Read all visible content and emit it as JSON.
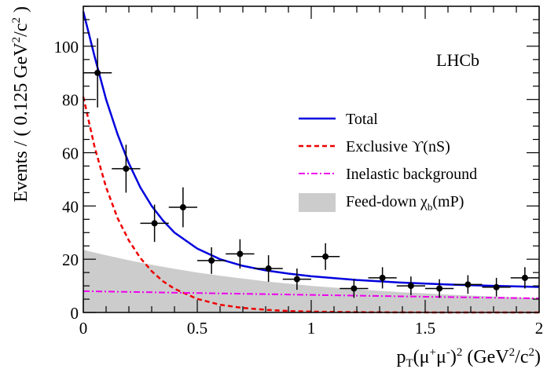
{
  "chart_data": {
    "type": "scatter",
    "experiment_label": "LHCb",
    "xlabel": {
      "base": "p",
      "sub": "T",
      "mid": "(μ",
      "sup1": "+",
      "mu2": "μ",
      "sup2": "-",
      "close": ")",
      "sq": "2",
      "unit": " (GeV",
      "unit_sup": "2",
      "unit_end": "/c",
      "unit_end_sup": "2",
      "unit_close": ")"
    },
    "ylabel": {
      "text": "Events / ( 0.125 GeV",
      "sup1": "2",
      "mid": "/c",
      "sup2": "2",
      "close": " )"
    },
    "xlim": [
      0,
      2
    ],
    "ylim": [
      0,
      115
    ],
    "x_ticks": [
      {
        "value": 0,
        "label": "0"
      },
      {
        "value": 0.5,
        "label": "0.5"
      },
      {
        "value": 1,
        "label": "1"
      },
      {
        "value": 1.5,
        "label": "1.5"
      },
      {
        "value": 2,
        "label": "2"
      }
    ],
    "y_ticks": [
      {
        "value": 0,
        "label": "0"
      },
      {
        "value": 20,
        "label": "20"
      },
      {
        "value": 40,
        "label": "40"
      },
      {
        "value": 60,
        "label": "60"
      },
      {
        "value": 80,
        "label": "80"
      },
      {
        "value": 100,
        "label": "100"
      }
    ],
    "data_points": [
      {
        "x": 0.0625,
        "y": 90,
        "yerr": 13,
        "xerr": 0.0625
      },
      {
        "x": 0.1875,
        "y": 54,
        "yerr": 9,
        "xerr": 0.0625
      },
      {
        "x": 0.3125,
        "y": 33.5,
        "yerr": 7,
        "xerr": 0.0625
      },
      {
        "x": 0.4375,
        "y": 39.5,
        "yerr": 7.5,
        "xerr": 0.0625
      },
      {
        "x": 0.5625,
        "y": 19.5,
        "yerr": 5,
        "xerr": 0.0625
      },
      {
        "x": 0.6875,
        "y": 22,
        "yerr": 5.5,
        "xerr": 0.0625
      },
      {
        "x": 0.8125,
        "y": 16.5,
        "yerr": 5,
        "xerr": 0.0625
      },
      {
        "x": 0.9375,
        "y": 12.5,
        "yerr": 4,
        "xerr": 0.0625
      },
      {
        "x": 1.0625,
        "y": 21,
        "yerr": 5,
        "xerr": 0.0625
      },
      {
        "x": 1.1875,
        "y": 9,
        "yerr": 3.5,
        "xerr": 0.0625
      },
      {
        "x": 1.3125,
        "y": 13,
        "yerr": 4,
        "xerr": 0.0625
      },
      {
        "x": 1.4375,
        "y": 10,
        "yerr": 3.5,
        "xerr": 0.0625
      },
      {
        "x": 1.5625,
        "y": 9,
        "yerr": 3.5,
        "xerr": 0.0625
      },
      {
        "x": 1.6875,
        "y": 10.5,
        "yerr": 3.5,
        "xerr": 0.0625
      },
      {
        "x": 1.8125,
        "y": 9.5,
        "yerr": 3.5,
        "xerr": 0.0625
      },
      {
        "x": 1.9375,
        "y": 13,
        "yerr": 4,
        "xerr": 0.0625
      }
    ],
    "series": [
      {
        "name": "Total",
        "style": "solid",
        "color": "#0000dd",
        "x": [
          0,
          0.05,
          0.1,
          0.15,
          0.2,
          0.25,
          0.3,
          0.35,
          0.4,
          0.5,
          0.6,
          0.7,
          0.8,
          0.9,
          1.0,
          1.2,
          1.4,
          1.6,
          1.8,
          2.0
        ],
        "y": [
          113,
          96,
          80,
          67,
          56,
          47,
          40,
          34.5,
          30,
          24,
          20,
          17.5,
          15.8,
          14.6,
          13.6,
          12.2,
          11.2,
          10.5,
          10,
          9.6
        ]
      },
      {
        "name": "Exclusive ϒ(nS)",
        "style": "dashed",
        "color": "#ee0000",
        "x": [
          0,
          0.05,
          0.1,
          0.15,
          0.2,
          0.25,
          0.3,
          0.35,
          0.4,
          0.5,
          0.6,
          0.7,
          0.8,
          0.9,
          1.0,
          1.2,
          1.4,
          1.6,
          1.8,
          2.0
        ],
        "y": [
          81,
          62,
          47,
          35.5,
          27,
          20.5,
          15.5,
          11.7,
          8.9,
          5.1,
          2.9,
          1.7,
          1.0,
          0.55,
          0.32,
          0.1,
          0.03,
          0.01,
          0,
          0
        ]
      },
      {
        "name": "Inelastic background",
        "style": "dashdot",
        "color": "#ee00ee",
        "x": [
          0,
          0.5,
          1.0,
          1.5,
          2.0
        ],
        "y": [
          8,
          7.3,
          6.6,
          5.9,
          5.3
        ]
      },
      {
        "name": "Feed-down χ(mP)",
        "style": "fill",
        "color": "#cccccc",
        "x": [
          0,
          0.1,
          0.2,
          0.3,
          0.4,
          0.5,
          0.6,
          0.8,
          1.0,
          1.2,
          1.4,
          1.6,
          1.8,
          2.0
        ],
        "y": [
          23.5,
          21.5,
          19.6,
          17.9,
          16.4,
          15.0,
          13.8,
          11.7,
          10.0,
          8.7,
          7.6,
          6.7,
          6.0,
          5.4
        ]
      }
    ],
    "legend": {
      "position": "right",
      "items": [
        {
          "label": "Total",
          "type": "line-solid",
          "color": "#0000dd"
        },
        {
          "label": "Exclusive ϒ(nS)",
          "type": "line-dashed",
          "color": "#ee0000"
        },
        {
          "label": "Inelastic background",
          "type": "line-dashdot",
          "color": "#ee00ee"
        },
        {
          "label_base": "Feed-down χ",
          "label_sub": "b",
          "label_end": "(mP)",
          "type": "fill",
          "color": "#cccccc"
        }
      ]
    }
  }
}
